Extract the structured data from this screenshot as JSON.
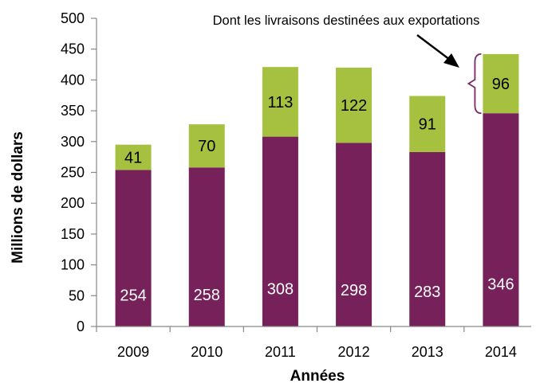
{
  "chart_data": {
    "type": "bar",
    "stacked": true,
    "title": "",
    "xlabel": "Années",
    "ylabel": "Millions de dollars",
    "ylim": [
      0,
      500
    ],
    "yticks": [
      0,
      50,
      100,
      150,
      200,
      250,
      300,
      350,
      400,
      450,
      500
    ],
    "categories": [
      "2009",
      "2010",
      "2011",
      "2012",
      "2013",
      "2014"
    ],
    "grid": false,
    "legend": "none",
    "series": [
      {
        "values": [
          254,
          258,
          308,
          298,
          283,
          346
        ],
        "color": "#76215A",
        "label_color": "#FFFFFF"
      },
      {
        "values": [
          41,
          70,
          113,
          122,
          91,
          96
        ],
        "color": "#A6C13F",
        "label_color": "#000000"
      }
    ],
    "annotation": {
      "text": "Dont les livraisons destinées aux exportations",
      "target_category": "2014",
      "target_series_index": 1
    }
  }
}
